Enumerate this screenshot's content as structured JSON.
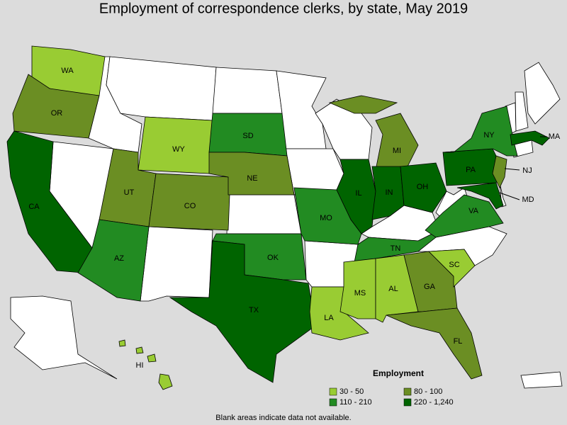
{
  "title": "Employment of correspondence clerks, by state, May 2019",
  "legend": {
    "title": "Employment",
    "items": [
      {
        "label": "30 - 50",
        "color": "#99cc33"
      },
      {
        "label": "80 - 100",
        "color": "#6b8e23"
      },
      {
        "label": "110 - 210",
        "color": "#228b22"
      },
      {
        "label": "220 - 1,240",
        "color": "#006400"
      }
    ]
  },
  "states": [
    {
      "label": "WA",
      "range": 0
    },
    {
      "label": "OR",
      "range": 1
    },
    {
      "label": "CA",
      "range": 3
    },
    {
      "label": "WY",
      "range": 0
    },
    {
      "label": "UT",
      "range": 1
    },
    {
      "label": "CO",
      "range": 1
    },
    {
      "label": "AZ",
      "range": 2
    },
    {
      "label": "SD",
      "range": 2
    },
    {
      "label": "NE",
      "range": 1
    },
    {
      "label": "OK",
      "range": 2
    },
    {
      "label": "TX",
      "range": 3
    },
    {
      "label": "MO",
      "range": 2
    },
    {
      "label": "LA",
      "range": 0
    },
    {
      "label": "IL",
      "range": 3
    },
    {
      "label": "MI",
      "range": 1
    },
    {
      "label": "IN",
      "range": 3
    },
    {
      "label": "OH",
      "range": 3
    },
    {
      "label": "TN",
      "range": 2
    },
    {
      "label": "MS",
      "range": 0
    },
    {
      "label": "AL",
      "range": 0
    },
    {
      "label": "GA",
      "range": 1
    },
    {
      "label": "FL",
      "range": 1
    },
    {
      "label": "SC",
      "range": 0
    },
    {
      "label": "VA",
      "range": 2
    },
    {
      "label": "MD",
      "range": 3
    },
    {
      "label": "PA",
      "range": 3
    },
    {
      "label": "NJ",
      "range": 1
    },
    {
      "label": "NY",
      "range": 2
    },
    {
      "label": "MA",
      "range": 3
    },
    {
      "label": "HI",
      "range": 0
    }
  ],
  "footnote": "Blank areas indicate data not available."
}
